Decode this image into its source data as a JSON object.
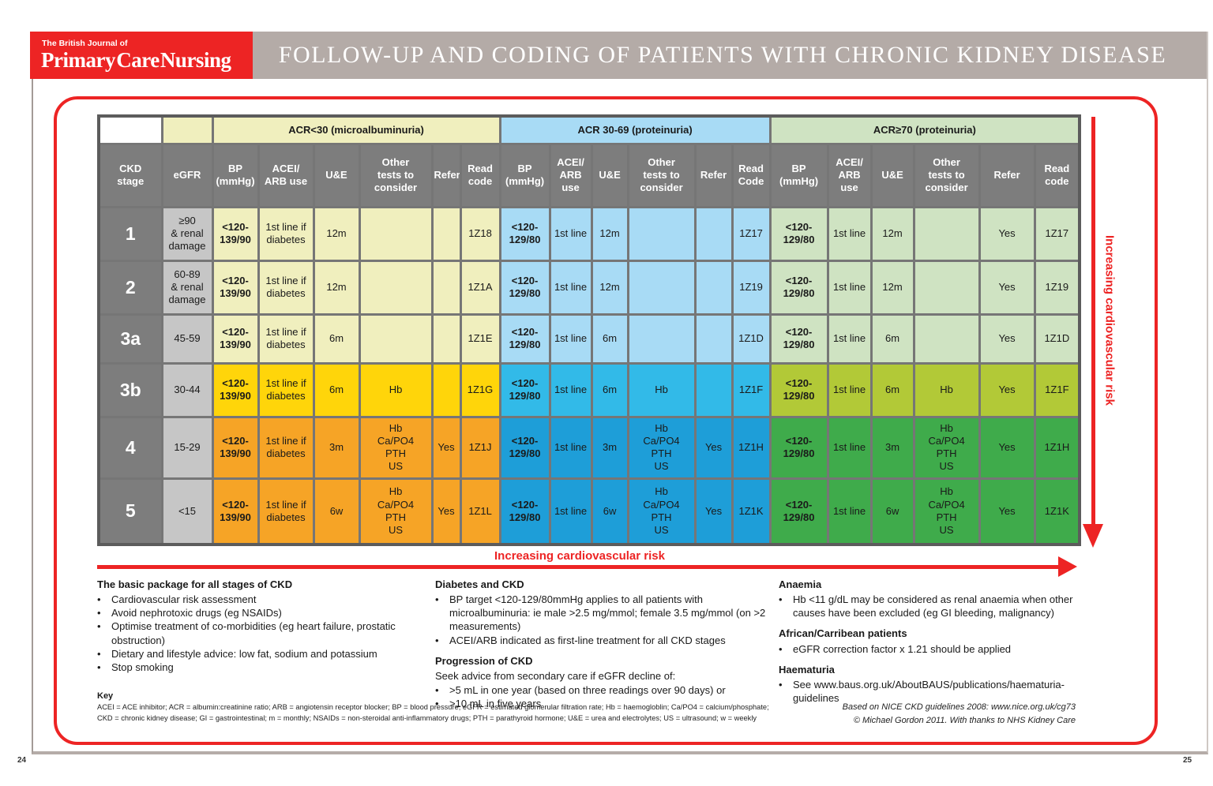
{
  "masthead": {
    "journal_small": "The British Journal of",
    "journal_name": "Primary Care Nursing",
    "title": "FOLLOW-UP AND CODING OF PATIENTS WITH CHRONIC KIDNEY DISEASE"
  },
  "colors": {
    "accent_red": "#ED2424",
    "masthead_taupe": "#B4ABA7",
    "header_gray": "#7D7D7D",
    "egfr_gray": "#C6C6C6",
    "acr_lt30_light": "#F0EFBE",
    "acr_lt30_mid": "#FFD50A",
    "acr_lt30_dark": "#F6A426",
    "acr_30_69_light": "#A8DBF5",
    "acr_30_69_mid": "#32BAE8",
    "acr_30_69_dark": "#1E9ED8",
    "acr_ge70_light": "#CFE3C2",
    "acr_ge70_mid": "#B2C937",
    "acr_ge70_dark": "#3FAB4B"
  },
  "table": {
    "groups": [
      {
        "label": "ACR<30 (microalbuminuria)"
      },
      {
        "label": "ACR 30-69 (proteinuria)"
      },
      {
        "label": "ACR≥70 (proteinuria)"
      }
    ],
    "col_headers": {
      "stage": "CKD\nstage",
      "egfr": "eGFR",
      "sections": [
        [
          "BP\n(mmHg)",
          "ACEI/\nARB use",
          "U&E",
          "Other\ntests to\nconsider",
          "Refer",
          "Read\ncode"
        ],
        [
          "BP\n(mmHg)",
          "ACEI/\nARB\nuse",
          "U&E",
          "Other\ntests to\nconsider",
          "Refer",
          "Read\nCode"
        ],
        [
          "BP\n(mmHg)",
          "ACEI/\nARB\nuse",
          "U&E",
          "Other\ntests to\nconsider",
          "Refer",
          "Read\ncode"
        ]
      ]
    },
    "rows": [
      {
        "stage": "1",
        "egfr": "≥90\n& renal\ndamage",
        "band": "light",
        "sections": [
          {
            "bp": "<120-\n139/90",
            "acei": "1st line if diabetes",
            "ue": "12m",
            "other": "",
            "refer": "",
            "read": "1Z18"
          },
          {
            "bp": "<120-\n129/80",
            "acei": "1st line",
            "ue": "12m",
            "other": "",
            "refer": "",
            "read": "1Z17"
          },
          {
            "bp": "<120-\n129/80",
            "acei": "1st line",
            "ue": "12m",
            "other": "",
            "refer": "Yes",
            "read": "1Z17"
          }
        ]
      },
      {
        "stage": "2",
        "egfr": "60-89\n& renal\ndamage",
        "band": "light",
        "sections": [
          {
            "bp": "<120-\n139/90",
            "acei": "1st line if diabetes",
            "ue": "12m",
            "other": "",
            "refer": "",
            "read": "1Z1A"
          },
          {
            "bp": "<120-\n129/80",
            "acei": "1st line",
            "ue": "12m",
            "other": "",
            "refer": "",
            "read": "1Z19"
          },
          {
            "bp": "<120-\n129/80",
            "acei": "1st line",
            "ue": "12m",
            "other": "",
            "refer": "Yes",
            "read": "1Z19"
          }
        ]
      },
      {
        "stage": "3a",
        "egfr": "45-59",
        "band": "light",
        "sections": [
          {
            "bp": "<120-\n139/90",
            "acei": "1st line if diabetes",
            "ue": "6m",
            "other": "",
            "refer": "",
            "read": "1Z1E"
          },
          {
            "bp": "<120-\n129/80",
            "acei": "1st line",
            "ue": "6m",
            "other": "",
            "refer": "",
            "read": "1Z1D"
          },
          {
            "bp": "<120-\n129/80",
            "acei": "1st line",
            "ue": "6m",
            "other": "",
            "refer": "Yes",
            "read": "1Z1D"
          }
        ]
      },
      {
        "stage": "3b",
        "egfr": "30-44",
        "band": "mid",
        "sections": [
          {
            "bp": "<120-\n139/90",
            "acei": "1st line if diabetes",
            "ue": "6m",
            "other": "Hb",
            "refer": "",
            "read": "1Z1G"
          },
          {
            "bp": "<120-\n129/80",
            "acei": "1st line",
            "ue": "6m",
            "other": "Hb",
            "refer": "",
            "read": "1Z1F"
          },
          {
            "bp": "<120-\n129/80",
            "acei": "1st line",
            "ue": "6m",
            "other": "Hb",
            "refer": "Yes",
            "read": "1Z1F"
          }
        ]
      },
      {
        "stage": "4",
        "egfr": "15-29",
        "band": "dark",
        "sections": [
          {
            "bp": "<120-\n139/90",
            "acei": "1st line if diabetes",
            "ue": "3m",
            "other": "Hb\nCa/PO4\nPTH\nUS",
            "refer": "Yes",
            "read": "1Z1J"
          },
          {
            "bp": "<120-\n129/80",
            "acei": "1st line",
            "ue": "3m",
            "other": "Hb\nCa/PO4\nPTH\nUS",
            "refer": "Yes",
            "read": "1Z1H"
          },
          {
            "bp": "<120-\n129/80",
            "acei": "1st line",
            "ue": "3m",
            "other": "Hb\nCa/PO4\nPTH\nUS",
            "refer": "Yes",
            "read": "1Z1H"
          }
        ]
      },
      {
        "stage": "5",
        "egfr": "<15",
        "band": "dark",
        "sections": [
          {
            "bp": "<120-\n139/90",
            "acei": "1st line if diabetes",
            "ue": "6w",
            "other": "Hb\nCa/PO4\nPTH\nUS",
            "refer": "Yes",
            "read": "1Z1L"
          },
          {
            "bp": "<120-\n129/80",
            "acei": "1st line",
            "ue": "6w",
            "other": "Hb\nCa/PO4\nPTH\nUS",
            "refer": "Yes",
            "read": "1Z1K"
          },
          {
            "bp": "<120-\n129/80",
            "acei": "1st line",
            "ue": "6w",
            "other": "Hb\nCa/PO4\nPTH\nUS",
            "refer": "Yes",
            "read": "1Z1K"
          }
        ]
      }
    ]
  },
  "arrows": {
    "vertical_label": "Increasing cardiovascular risk",
    "horizontal_label": "Increasing cardiovascular risk"
  },
  "notes": {
    "basic_package": {
      "heading": "The basic package for all stages of CKD",
      "bullets": [
        "Cardiovascular risk assessment",
        "Avoid nephrotoxic drugs (eg NSAIDs)",
        "Optimise treatment of co-morbidities (eg heart failure, prostatic obstruction)",
        "Dietary and lifestyle advice: low fat, sodium and potassium",
        "Stop smoking"
      ]
    },
    "diabetes": {
      "heading": "Diabetes and CKD",
      "bullets": [
        "BP target <120-129/80mmHg applies to all patients with microalbuminuria: ie male >2.5 mg/mmol; female 3.5 mg/mmol (on >2 measurements)",
        "ACEI/ARB indicated as first-line treatment for all CKD stages"
      ]
    },
    "progression": {
      "heading": "Progression of CKD",
      "intro": "Seek advice from secondary care if eGFR decline of:",
      "bullets": [
        ">5 mL in one year (based on three readings over 90 days) or",
        ">10 mL in five years"
      ]
    },
    "anaemia": {
      "heading": "Anaemia",
      "bullets": [
        "Hb <11 g/dL may be considered as renal anaemia when other causes have been excluded (eg GI bleeding, malignancy)"
      ]
    },
    "african_carribean": {
      "heading": "African/Carribean patients",
      "bullets": [
        "eGFR correction factor x 1.21 should be applied"
      ]
    },
    "haematuria": {
      "heading": "Haematuria",
      "bullets": [
        "See www.baus.org.uk/AboutBAUS/publications/haematuria-guidelines"
      ]
    }
  },
  "key": {
    "heading": "Key",
    "line1": "ACEI = ACE inhibitor;  ACR = albumin:creatinine ratio;  ARB = angiotensin receptor blocker;  BP = blood pressure;  eGFR = estimated glomerular filtration rate;  Hb = haemogloblin;  Ca/PO4 = calcium/phosphate;",
    "line2": "CKD = chronic kidney disease;  GI = gastrointestinal;  m = monthly;  NSAIDs = non-steroidal anti-inflammatory drugs;  PTH = parathyroid hormone;  U&E = urea and electrolytes;  US = ultrasound;  w = weekly"
  },
  "credits": {
    "line1": "Based on NICE CKD guidelines 2008: www.nice.org.uk/cg73",
    "line2": "© Michael Gordon 2011.   With thanks to NHS Kidney Care"
  },
  "page": {
    "left_page_number": "24",
    "right_page_number": "25"
  }
}
